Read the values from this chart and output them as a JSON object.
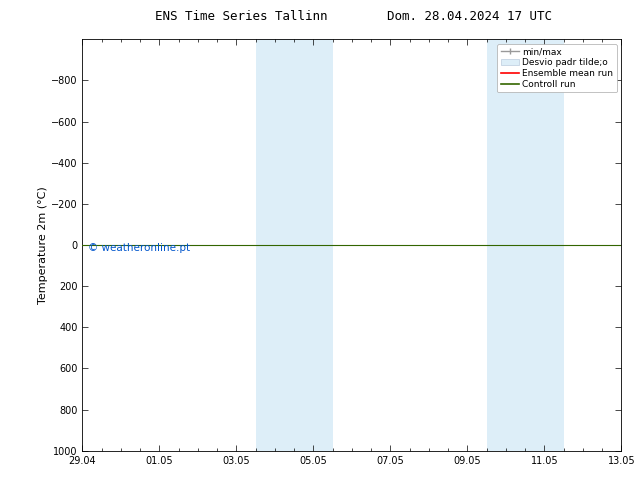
{
  "title_left": "ENS Time Series Tallinn",
  "title_right": "Dom. 28.04.2024 17 UTC",
  "ylabel": "Temperature 2m (°C)",
  "ylim_bottom": -1000,
  "ylim_top": 1000,
  "yticks": [
    -800,
    -600,
    -400,
    -200,
    0,
    200,
    400,
    600,
    800,
    1000
  ],
  "xtick_labels": [
    "29.04",
    "01.05",
    "03.05",
    "05.05",
    "07.05",
    "09.05",
    "11.05",
    "13.05"
  ],
  "xtick_positions": [
    0,
    2,
    4,
    6,
    8,
    10,
    12,
    14
  ],
  "watermark": "© weatheronline.pt",
  "watermark_color": "#0055cc",
  "shaded_bands": [
    {
      "x_start": 4.5,
      "x_end": 5.5,
      "color": "#ddeef8"
    },
    {
      "x_start": 5.5,
      "x_end": 6.5,
      "color": "#ddeef8"
    },
    {
      "x_start": 10.5,
      "x_end": 11.5,
      "color": "#ddeef8"
    },
    {
      "x_start": 11.5,
      "x_end": 12.5,
      "color": "#ddeef8"
    }
  ],
  "control_run_y": 0,
  "legend_labels": [
    "min/max",
    "Desvio padr tilde;o",
    "Ensemble mean run",
    "Controll run"
  ],
  "legend_colors": [
    "#999999",
    "#c8dff0",
    "#ff0000",
    "#336600"
  ],
  "bg_color": "#ffffff",
  "plot_bg_color": "#ffffff"
}
